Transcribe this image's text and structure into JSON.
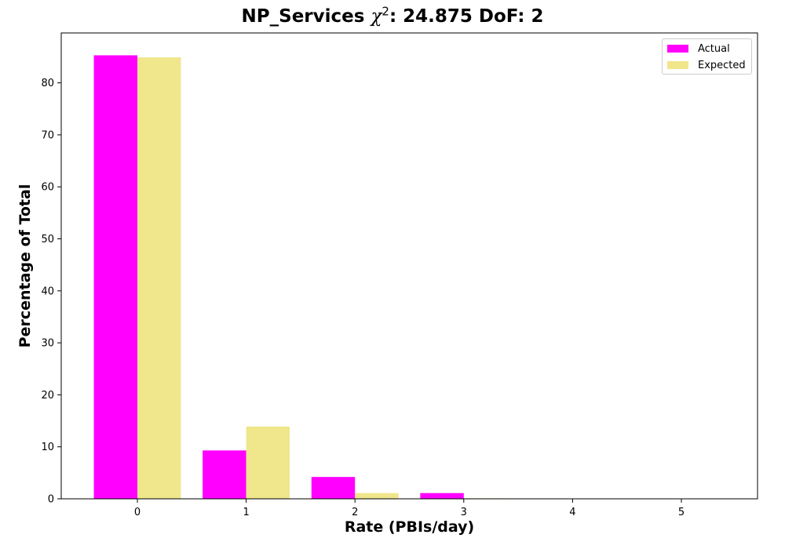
{
  "title": {
    "prefix": "NP_Services ",
    "chi_symbol": "χ",
    "chi_exponent": "2",
    "suffix": ": 24.875 DoF: 2"
  },
  "chart_data": {
    "type": "bar",
    "xlabel": "Rate (PBIs/day)",
    "ylabel": "Percentage of Total",
    "categories": [
      "0",
      "1",
      "2",
      "3",
      "4",
      "5"
    ],
    "series": [
      {
        "name": "Actual",
        "color": "#ff00ff",
        "values": [
          85.3,
          9.3,
          4.2,
          1.1,
          0.0,
          0.0
        ]
      },
      {
        "name": "Expected",
        "color": "#f0e68c",
        "values": [
          84.9,
          13.9,
          1.1,
          0.1,
          0.0,
          0.0
        ]
      }
    ],
    "xlim": [
      -0.7,
      5.7
    ],
    "ylim": [
      0,
      89.6
    ],
    "yticks": [
      0,
      10,
      20,
      30,
      40,
      50,
      60,
      70,
      80
    ],
    "grid": false,
    "legend_position": "top-right"
  }
}
